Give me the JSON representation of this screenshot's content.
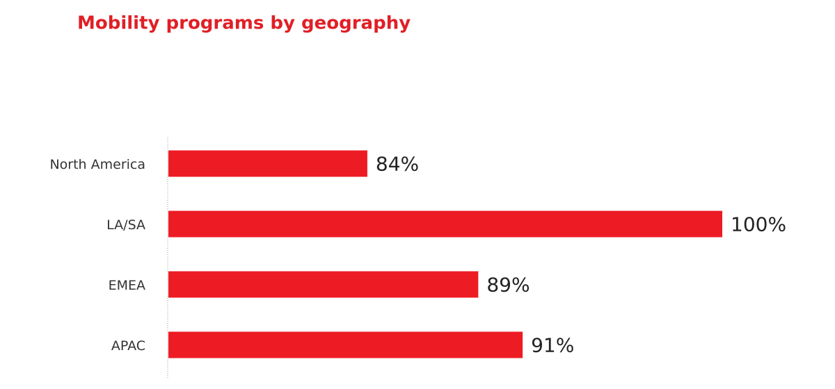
{
  "chart_data": {
    "type": "bar",
    "orientation": "horizontal",
    "title": "Mobility programs by geography",
    "categories": [
      "North America",
      "LA/SA",
      "EMEA",
      "APAC"
    ],
    "values": [
      84,
      100,
      89,
      91
    ],
    "value_labels": [
      "84%",
      "100%",
      "89%",
      "91%"
    ],
    "color": "#ed1c24",
    "xlim": [
      75,
      100
    ]
  }
}
